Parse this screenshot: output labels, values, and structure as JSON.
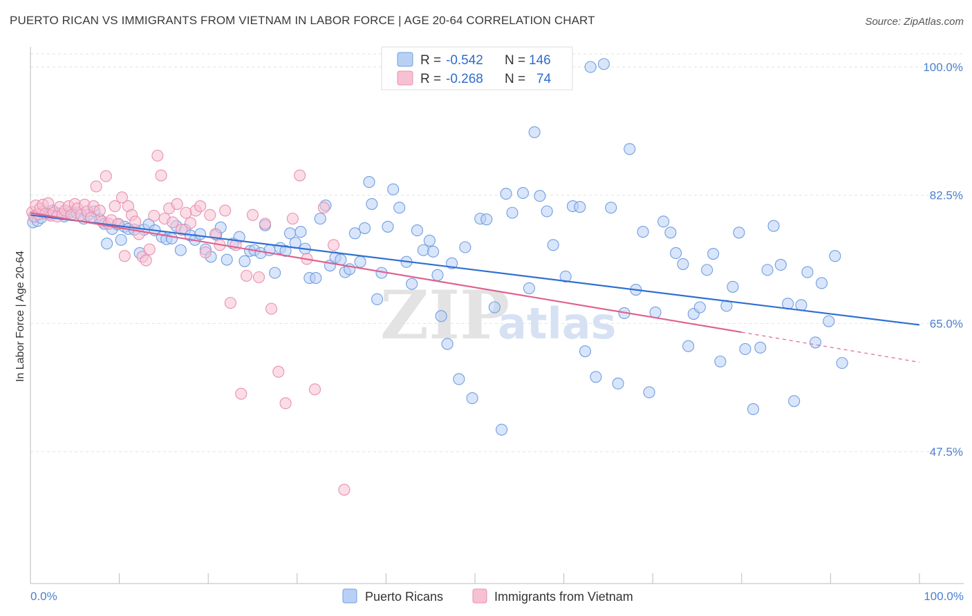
{
  "header": {
    "title": "PUERTO RICAN VS IMMIGRANTS FROM VIETNAM IN LABOR FORCE | AGE 20-64 CORRELATION CHART",
    "source": "Source: ZipAtlas.com"
  },
  "watermark": {
    "zip": "ZIP",
    "atlas": "atlas"
  },
  "stats": {
    "r_label": "R =",
    "n_label": "N =",
    "rows": [
      {
        "r": "-0.542",
        "n": "146",
        "color": "#6f9ee0",
        "fill": "#b9d0f5"
      },
      {
        "r": "-0.268",
        "n": "74",
        "color": "#e890ad",
        "fill": "#f7c1d3"
      }
    ]
  },
  "legend": {
    "items": [
      {
        "label": "Puerto Ricans",
        "color": "#6f9ee0",
        "fill": "#b9d0f5"
      },
      {
        "label": "Immigrants from Vietnam",
        "color": "#e890ad",
        "fill": "#f7c1d3"
      }
    ]
  },
  "chart_data": {
    "type": "scatter",
    "ylabel": "In Labor Force | Age 20-64",
    "xlim": [
      0,
      100
    ],
    "ylim": [
      29,
      102
    ],
    "x_tick_labels": [
      "0.0%",
      "100.0%"
    ],
    "y_ticks": [
      {
        "value": 100,
        "label": "100.0%"
      },
      {
        "value": 82.5,
        "label": "82.5%"
      },
      {
        "value": 65,
        "label": "65.0%"
      },
      {
        "value": 47.5,
        "label": "47.5%"
      }
    ],
    "grid": true,
    "series": [
      {
        "name": "Puerto Ricans",
        "color": "#6f9ee0",
        "fill": "#b9d0f5",
        "trend": {
          "x0": 0,
          "y0": 79.8,
          "x1": 100,
          "y1": 64.8
        },
        "points": [
          [
            0.3,
            78.8
          ],
          [
            0.5,
            79.6
          ],
          [
            0.8,
            79.0
          ],
          [
            1.2,
            79.4
          ],
          [
            1.5,
            80.3
          ],
          [
            2.1,
            79.9
          ],
          [
            2.5,
            80.4
          ],
          [
            3.1,
            80.0
          ],
          [
            3.8,
            79.6
          ],
          [
            4.5,
            80.2
          ],
          [
            5.2,
            80.1
          ],
          [
            6.0,
            79.3
          ],
          [
            6.5,
            79.8
          ],
          [
            7.2,
            80.3
          ],
          [
            7.8,
            79.2
          ],
          [
            8.3,
            78.6
          ],
          [
            8.6,
            75.9
          ],
          [
            9.2,
            77.9
          ],
          [
            9.8,
            78.5
          ],
          [
            10.2,
            76.4
          ],
          [
            10.6,
            78.2
          ],
          [
            11.0,
            77.9
          ],
          [
            11.7,
            77.8
          ],
          [
            12.3,
            74.6
          ],
          [
            12.8,
            77.8
          ],
          [
            13.3,
            78.5
          ],
          [
            14.0,
            77.7
          ],
          [
            14.8,
            76.8
          ],
          [
            15.3,
            76.5
          ],
          [
            15.9,
            76.6
          ],
          [
            16.4,
            78.3
          ],
          [
            16.9,
            75.0
          ],
          [
            17.4,
            77.8
          ],
          [
            18.0,
            77.0
          ],
          [
            18.5,
            76.4
          ],
          [
            19.1,
            77.2
          ],
          [
            19.7,
            75.1
          ],
          [
            20.3,
            74.1
          ],
          [
            20.9,
            77.1
          ],
          [
            21.4,
            78.1
          ],
          [
            22.1,
            73.7
          ],
          [
            22.8,
            75.9
          ],
          [
            23.5,
            76.8
          ],
          [
            24.1,
            73.5
          ],
          [
            24.7,
            74.9
          ],
          [
            25.2,
            75.0
          ],
          [
            25.9,
            74.6
          ],
          [
            26.4,
            78.4
          ],
          [
            26.9,
            75.0
          ],
          [
            27.5,
            71.9
          ],
          [
            28.1,
            75.3
          ],
          [
            28.7,
            74.9
          ],
          [
            29.2,
            77.3
          ],
          [
            29.8,
            76.0
          ],
          [
            30.4,
            77.5
          ],
          [
            30.9,
            75.2
          ],
          [
            31.4,
            71.2
          ],
          [
            32.1,
            71.2
          ],
          [
            32.6,
            79.3
          ],
          [
            33.2,
            81.1
          ],
          [
            33.7,
            72.9
          ],
          [
            34.3,
            74.0
          ],
          [
            34.9,
            73.7
          ],
          [
            35.4,
            72.0
          ],
          [
            35.9,
            72.4
          ],
          [
            36.5,
            77.3
          ],
          [
            37.1,
            73.4
          ],
          [
            37.6,
            78.0
          ],
          [
            38.1,
            84.3
          ],
          [
            38.4,
            81.3
          ],
          [
            39.0,
            68.3
          ],
          [
            39.5,
            71.9
          ],
          [
            40.2,
            78.2
          ],
          [
            40.8,
            83.3
          ],
          [
            41.5,
            80.8
          ],
          [
            42.3,
            73.4
          ],
          [
            42.9,
            70.4
          ],
          [
            43.5,
            77.7
          ],
          [
            44.2,
            75.0
          ],
          [
            44.9,
            76.3
          ],
          [
            45.3,
            74.8
          ],
          [
            45.8,
            71.6
          ],
          [
            46.2,
            66.0
          ],
          [
            46.9,
            62.2
          ],
          [
            47.4,
            73.2
          ],
          [
            48.2,
            57.4
          ],
          [
            48.9,
            75.4
          ],
          [
            49.7,
            54.8
          ],
          [
            50.6,
            79.3
          ],
          [
            51.3,
            79.2
          ],
          [
            52.2,
            67.2
          ],
          [
            53.0,
            50.5
          ],
          [
            53.5,
            82.7
          ],
          [
            54.2,
            80.1
          ],
          [
            55.4,
            82.8
          ],
          [
            56.1,
            69.8
          ],
          [
            56.7,
            91.1
          ],
          [
            57.3,
            82.4
          ],
          [
            58.1,
            80.3
          ],
          [
            58.8,
            75.7
          ],
          [
            60.2,
            71.4
          ],
          [
            61.0,
            81.0
          ],
          [
            61.8,
            80.9
          ],
          [
            62.4,
            61.2
          ],
          [
            63.0,
            100.0
          ],
          [
            63.6,
            57.7
          ],
          [
            64.5,
            100.4
          ],
          [
            65.3,
            80.8
          ],
          [
            66.1,
            56.8
          ],
          [
            66.8,
            66.4
          ],
          [
            67.4,
            88.8
          ],
          [
            68.1,
            69.6
          ],
          [
            68.9,
            77.5
          ],
          [
            69.6,
            55.6
          ],
          [
            70.3,
            66.5
          ],
          [
            71.2,
            78.9
          ],
          [
            72.0,
            77.4
          ],
          [
            72.6,
            74.6
          ],
          [
            73.4,
            73.1
          ],
          [
            74.0,
            61.9
          ],
          [
            74.6,
            66.3
          ],
          [
            75.3,
            67.2
          ],
          [
            76.1,
            72.3
          ],
          [
            76.8,
            74.5
          ],
          [
            77.6,
            59.8
          ],
          [
            78.3,
            67.4
          ],
          [
            79.0,
            70.0
          ],
          [
            79.7,
            77.4
          ],
          [
            80.4,
            61.5
          ],
          [
            81.3,
            53.3
          ],
          [
            82.1,
            61.7
          ],
          [
            82.9,
            72.3
          ],
          [
            83.6,
            78.3
          ],
          [
            84.4,
            73.0
          ],
          [
            85.2,
            67.7
          ],
          [
            85.9,
            54.4
          ],
          [
            86.7,
            67.5
          ],
          [
            87.4,
            72.0
          ],
          [
            88.3,
            62.4
          ],
          [
            89.0,
            70.5
          ],
          [
            89.8,
            65.3
          ],
          [
            90.5,
            74.2
          ],
          [
            91.3,
            59.6
          ]
        ]
      },
      {
        "name": "Immigrants from Vietnam",
        "color": "#e890ad",
        "fill": "#f7c1d3",
        "trend": {
          "x0": 0,
          "y0": 80.1,
          "x1": 80,
          "y1": 63.8
        },
        "trend_dashed": {
          "x0": 80,
          "y0": 63.8,
          "x1": 100,
          "y1": 59.7
        },
        "points": [
          [
            0.2,
            80.2
          ],
          [
            0.4,
            79.6
          ],
          [
            0.6,
            81.1
          ],
          [
            0.9,
            79.9
          ],
          [
            1.1,
            80.7
          ],
          [
            1.4,
            81.2
          ],
          [
            1.7,
            80.0
          ],
          [
            2.0,
            81.4
          ],
          [
            2.3,
            79.7
          ],
          [
            2.6,
            80.1
          ],
          [
            3.0,
            79.6
          ],
          [
            3.3,
            80.9
          ],
          [
            3.6,
            79.9
          ],
          [
            3.9,
            80.4
          ],
          [
            4.3,
            81.0
          ],
          [
            4.6,
            79.8
          ],
          [
            5.0,
            81.3
          ],
          [
            5.3,
            80.7
          ],
          [
            5.7,
            79.8
          ],
          [
            6.1,
            81.2
          ],
          [
            6.4,
            80.3
          ],
          [
            6.8,
            79.4
          ],
          [
            7.1,
            81.0
          ],
          [
            7.4,
            83.7
          ],
          [
            7.8,
            80.4
          ],
          [
            8.1,
            78.9
          ],
          [
            8.5,
            85.1
          ],
          [
            8.8,
            78.6
          ],
          [
            9.1,
            79.1
          ],
          [
            9.5,
            81.0
          ],
          [
            9.9,
            78.6
          ],
          [
            10.3,
            82.2
          ],
          [
            10.6,
            74.2
          ],
          [
            11.0,
            81.0
          ],
          [
            11.4,
            79.8
          ],
          [
            11.8,
            78.9
          ],
          [
            12.2,
            77.2
          ],
          [
            12.6,
            74.1
          ],
          [
            13.0,
            73.6
          ],
          [
            13.4,
            75.1
          ],
          [
            13.9,
            79.7
          ],
          [
            14.3,
            87.9
          ],
          [
            14.7,
            85.2
          ],
          [
            15.1,
            79.3
          ],
          [
            15.6,
            80.7
          ],
          [
            16.0,
            78.8
          ],
          [
            16.5,
            81.3
          ],
          [
            17.0,
            77.8
          ],
          [
            17.5,
            80.1
          ],
          [
            18.0,
            78.7
          ],
          [
            18.6,
            80.4
          ],
          [
            19.1,
            81.0
          ],
          [
            19.7,
            74.7
          ],
          [
            20.2,
            79.8
          ],
          [
            20.8,
            77.2
          ],
          [
            21.3,
            75.7
          ],
          [
            21.9,
            80.4
          ],
          [
            22.5,
            67.8
          ],
          [
            23.1,
            75.7
          ],
          [
            23.7,
            55.4
          ],
          [
            24.3,
            71.5
          ],
          [
            25.0,
            79.8
          ],
          [
            25.7,
            71.3
          ],
          [
            26.4,
            78.6
          ],
          [
            27.1,
            67.0
          ],
          [
            27.9,
            58.4
          ],
          [
            28.7,
            54.1
          ],
          [
            29.5,
            79.3
          ],
          [
            30.3,
            85.2
          ],
          [
            31.1,
            73.8
          ],
          [
            32.0,
            56.0
          ],
          [
            33.0,
            80.8
          ],
          [
            34.1,
            75.7
          ],
          [
            35.3,
            42.3
          ]
        ]
      }
    ]
  }
}
